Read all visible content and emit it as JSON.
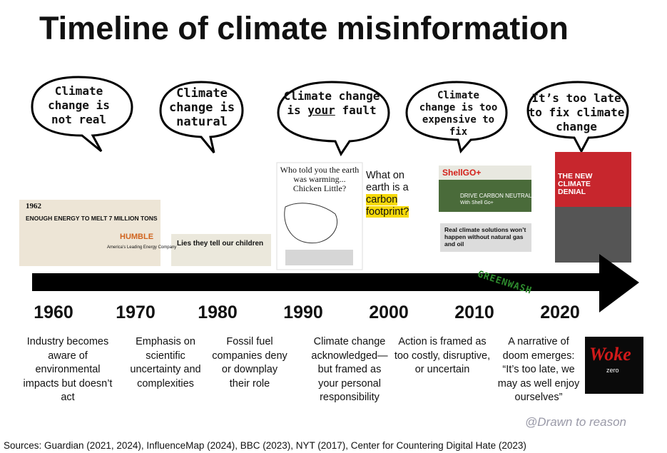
{
  "header": {
    "title": "Timeline of climate misinformation"
  },
  "bubbles": [
    {
      "text": "Climate change is not real"
    },
    {
      "text": "Climate change is natural"
    },
    {
      "before": "Climate change is",
      "emphasis": "your",
      "after": "fault"
    },
    {
      "text": "Climate change is too expensive to fix"
    },
    {
      "text": "It’s too late to fix climate change"
    }
  ],
  "images": {
    "ad_1962": {
      "year": "1962",
      "headline": "ENOUGH ENERGY TO MELT 7 MILLION TONS",
      "brand": "HUMBLE",
      "tagline": "America’s Leading Energy Company"
    },
    "ad_1980": {
      "headline": "Lies they tell our children"
    },
    "ad_1990": {
      "headline": "Who told you the earth was warming... Chicken Little?"
    },
    "ad_2000": {
      "lead": "What on earth is a",
      "highlight": "carbon footprint?"
    },
    "ad_2010a": {
      "brand": "ShellGO+",
      "headline": "DRIVE CARBON NEUTRAL",
      "sub": "With Shell Go+"
    },
    "ad_2010b": {
      "headline": "Real climate solutions won’t happen without natural gas and oil"
    },
    "ad_2020": {
      "headline": "THE NEW CLIMATE DENIAL"
    },
    "woke": {
      "brand": "Woke",
      "sub": "zero"
    }
  },
  "arrow_label": "GREENWASH",
  "decades": [
    "1960",
    "1970",
    "1980",
    "1990",
    "2000",
    "2010",
    "2020"
  ],
  "descriptions": [
    "Industry becomes aware of environmental impacts but doesn’t act",
    "Emphasis on scientific uncertainty and complexities",
    "Fossil fuel companies deny or downplay their role",
    "Climate change acknowledged—but framed as your personal responsibility",
    "Action is framed as too costly, disruptive, or uncertain",
    "A narrative of doom emerges: “It’s too late, we may as well enjoy ourselves”"
  ],
  "credit": "@Drawn to reason",
  "sources": "Sources: Guardian (2021, 2024), InfluenceMap (2024), BBC (2023), NYT (2017), Center for Countering Digital Hate (2023)"
}
